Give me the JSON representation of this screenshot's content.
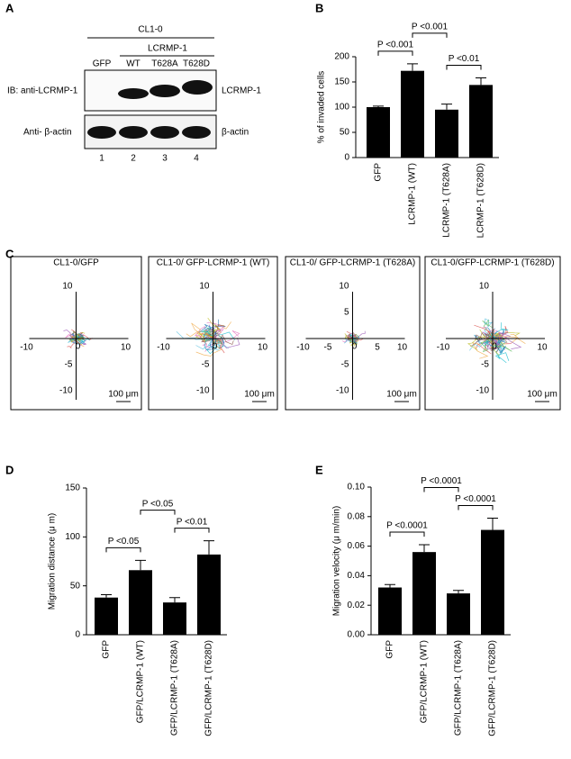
{
  "panel_labels": [
    "A",
    "B",
    "C",
    "D",
    "E"
  ],
  "blot": {
    "cell_line": "CL1-0",
    "group": "LCRMP-1",
    "lanes": [
      "GFP",
      "WT",
      "T628A",
      "T628D"
    ],
    "lane_numbers": [
      "1",
      "2",
      "3",
      "4"
    ],
    "rows": [
      {
        "left": "IB:  anti-LCRMP-1",
        "right": "LCRMP-1"
      },
      {
        "left": "Anti- β-actin",
        "right": "β-actin"
      }
    ]
  },
  "trajectories": [
    {
      "title": "CL1-0/GFP",
      "origin": "0",
      "xticks": [
        -10,
        10
      ],
      "yticks": [
        10,
        -5,
        -10
      ],
      "scale_bar": "100 μm"
    },
    {
      "title": "CL1-0/ GFP-LCRMP-1 (WT)",
      "origin": "0",
      "xticks": [
        -10,
        10
      ],
      "yticks": [
        10,
        -5,
        -10
      ],
      "scale_bar": "100 μm"
    },
    {
      "title": "CL1-0/ GFP-LCRMP-1 (T628A)",
      "origin": "0",
      "xticks": [
        -10,
        -5,
        5,
        10
      ],
      "yticks": [
        10,
        5,
        -5,
        -10
      ],
      "scale_bar": "100 μm"
    },
    {
      "title": "CL1-0/GFP-LCRMP-1 (T628D)",
      "origin": "0",
      "xticks": [
        -10,
        10
      ],
      "yticks": [
        10,
        -5,
        -10
      ],
      "scale_bar": "100 μm"
    }
  ],
  "chart_data": [
    {
      "type": "bar",
      "ylabel": "% of invaded cells",
      "color": "#000000",
      "categories": [
        "GFP",
        "LCRMP-1 (WT)",
        "LCRMP-1 (T628A)",
        "LCRMP-1 (T628D)"
      ],
      "values": [
        100,
        172,
        95,
        144
      ],
      "errors": [
        2,
        14,
        11,
        14
      ],
      "ylim": [
        0,
        200
      ],
      "yticks": [
        0,
        50,
        100,
        150,
        200
      ],
      "annotations": [
        "P <0.001",
        "P <0.001",
        "P <0.01"
      ]
    },
    {
      "type": "bar",
      "ylabel": "Migration distance (μ m)",
      "color": "#000000",
      "categories": [
        "GFP",
        "GFP/LCRMP-1 (WT)",
        "GFP/LCRMP-1 (T628A)",
        "GFP/LCRMP-1 (T628D)"
      ],
      "values": [
        38,
        66,
        33,
        82
      ],
      "errors": [
        3,
        10,
        5,
        14
      ],
      "ylim": [
        0,
        150
      ],
      "yticks": [
        0,
        50,
        100,
        150
      ],
      "annotations": [
        "P <0.05",
        "P <0.05",
        "P <0.01"
      ]
    },
    {
      "type": "bar",
      "ylabel": "Migration velocity (μ m/min)",
      "color": "#000000",
      "categories": [
        "GFP",
        "GFP/LCRMP-1 (WT)",
        "GFP/LCRMP-1 (T628A)",
        "GFP/LCRMP-1 (T628D)"
      ],
      "values": [
        0.032,
        0.056,
        0.028,
        0.071
      ],
      "errors": [
        0.002,
        0.005,
        0.002,
        0.008
      ],
      "ylim": [
        0,
        0.1
      ],
      "yticks": [
        {
          "value": 0,
          "label": "0.00"
        },
        0.02,
        0.04,
        0.06,
        0.08,
        {
          "value": 0.1,
          "label": "0.10"
        }
      ],
      "annotations": [
        "P <0.0001",
        "P <0.0001",
        "P <0.0001"
      ]
    }
  ]
}
